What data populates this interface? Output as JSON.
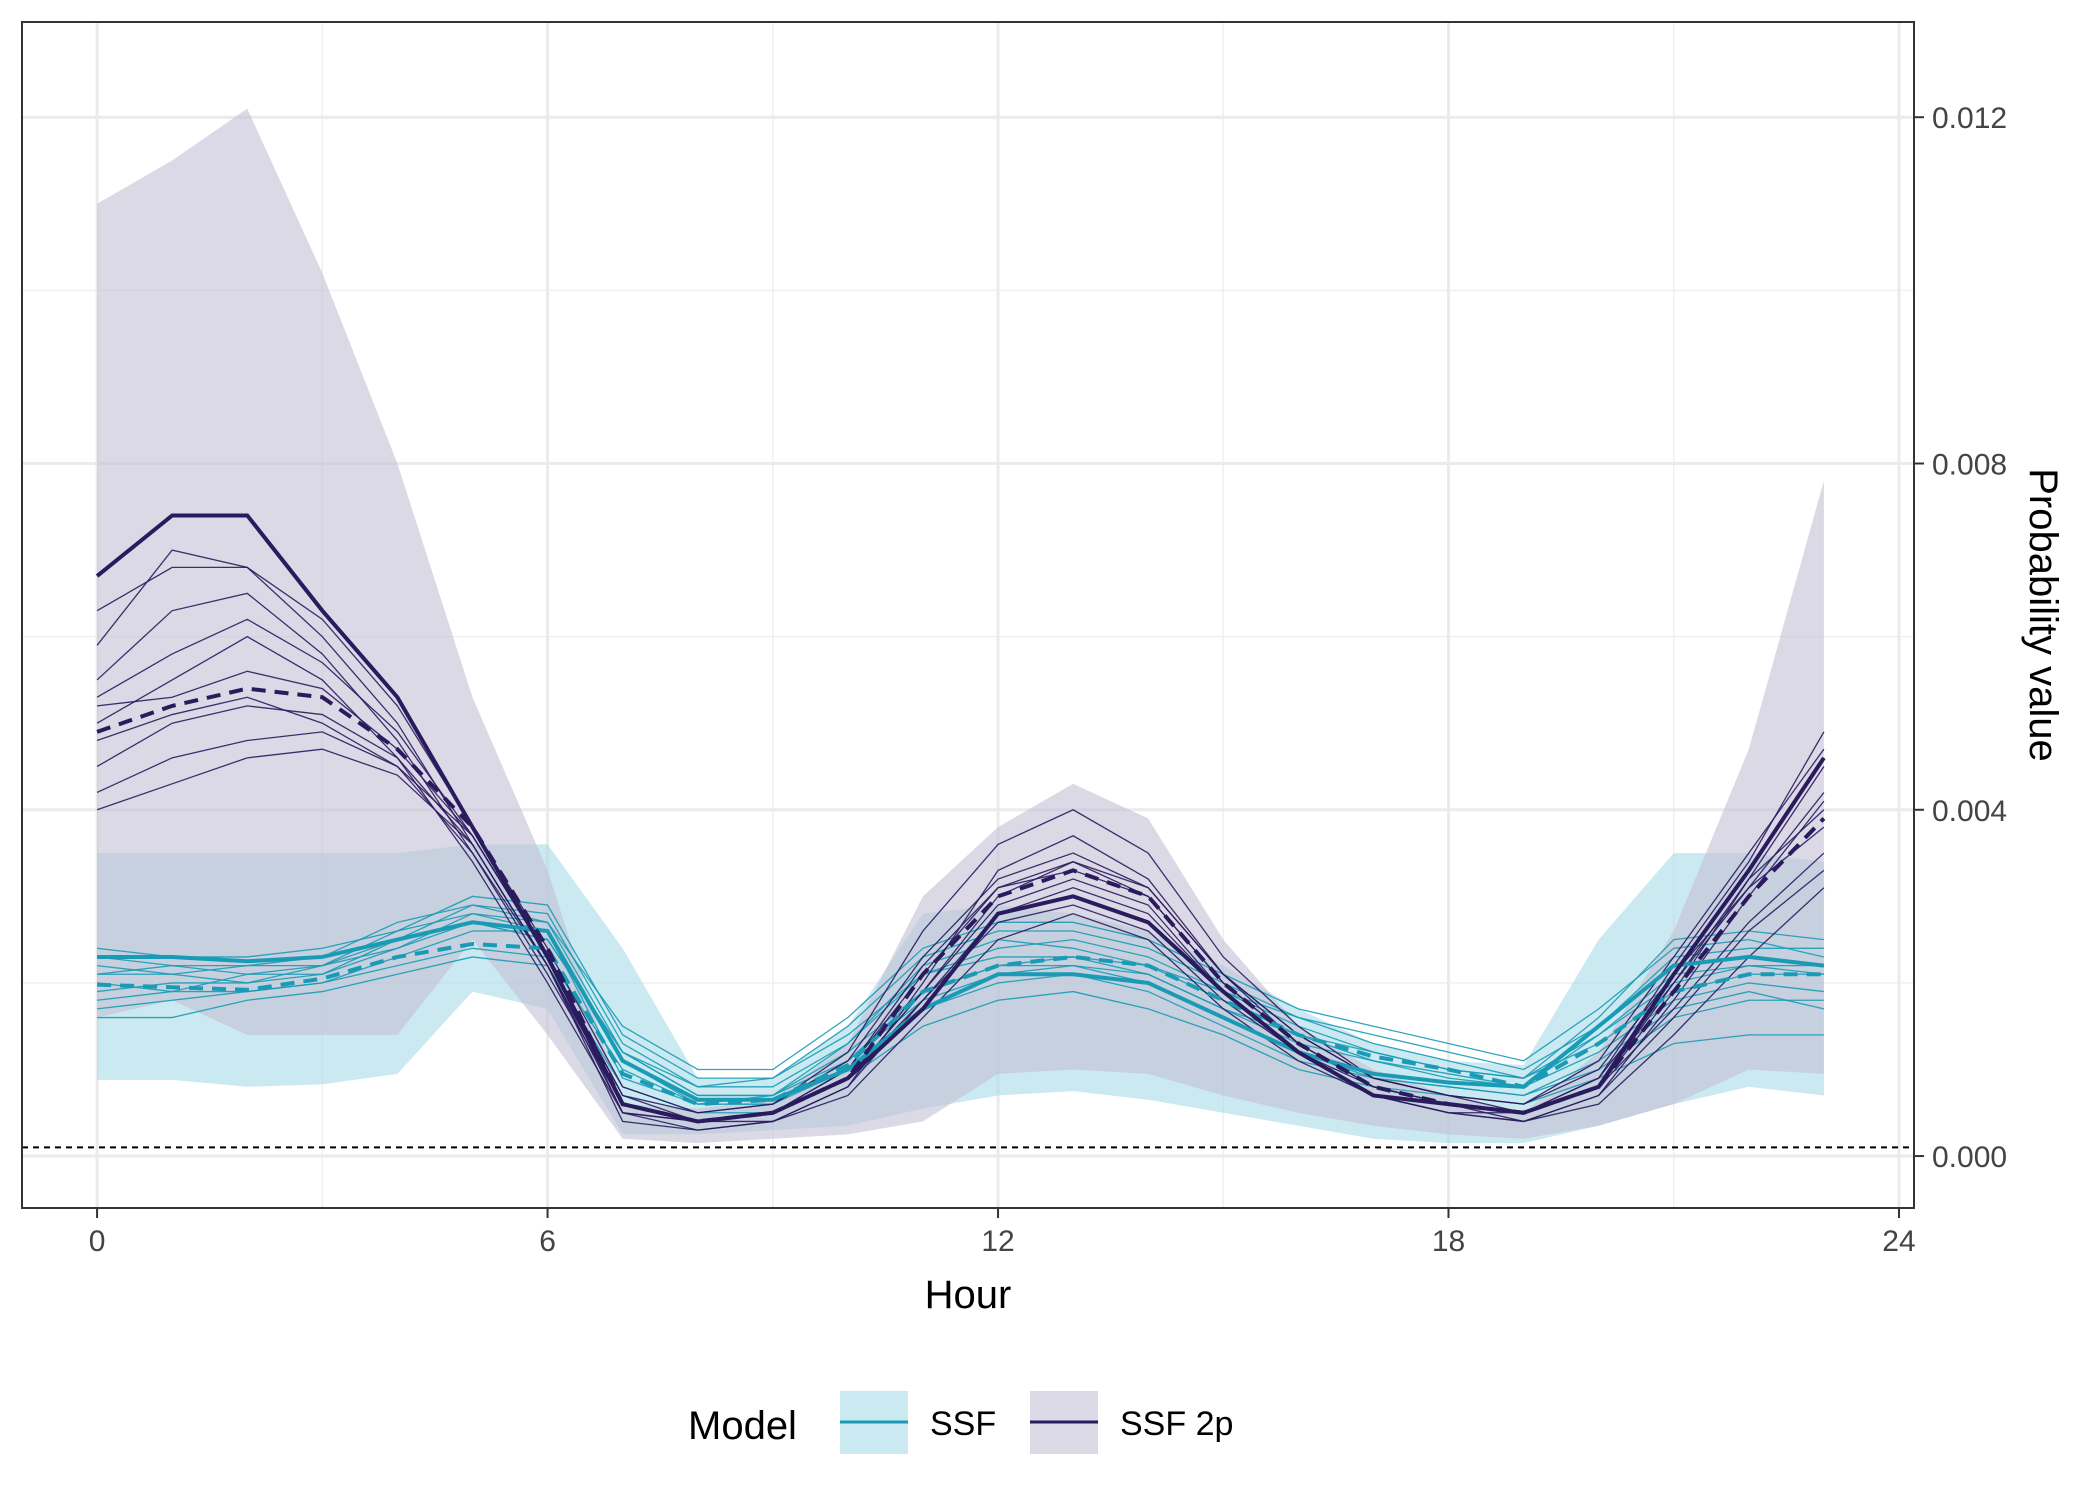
{
  "chart_data": {
    "type": "line",
    "xlabel": "Hour",
    "ylabel": "Probability value",
    "xlim": [
      -1,
      24.2
    ],
    "ylim": [
      -0.0006,
      0.0131
    ],
    "x_ticks": [
      0,
      6,
      12,
      18,
      24
    ],
    "x_tick_labels": [
      "0",
      "6",
      "12",
      "18",
      "24"
    ],
    "y_ticks": [
      0.0,
      0.004,
      0.008,
      0.012
    ],
    "y_tick_labels": [
      "0.000",
      "0.004",
      "0.008",
      "0.012"
    ],
    "y_axis_position": "right",
    "grid": true,
    "reference_line": 0.0001,
    "legend": {
      "title": "Model",
      "position": "bottom",
      "entries": [
        "SSF",
        "SSF 2p"
      ]
    },
    "x": [
      0,
      1,
      2,
      3,
      4,
      5,
      6,
      7,
      8,
      9,
      10,
      11,
      12,
      13,
      14,
      15,
      16,
      17,
      18,
      19,
      20,
      21,
      22,
      23
    ],
    "series": [
      {
        "name": "SSF",
        "color": "#1a9bb5",
        "band_fill": "#a6dbe6",
        "band_lower": [
          0.00088,
          0.00088,
          0.0008,
          0.00083,
          0.00095,
          0.0019,
          0.0017,
          0.00025,
          0.00025,
          0.0003,
          0.00035,
          0.00055,
          0.0007,
          0.00075,
          0.00065,
          0.0005,
          0.00035,
          0.0002,
          0.00015,
          0.00015,
          0.00035,
          0.0006,
          0.0008,
          0.0007
        ],
        "band_upper": [
          0.0035,
          0.0035,
          0.0035,
          0.0035,
          0.0035,
          0.0036,
          0.0036,
          0.0024,
          0.0009,
          0.0009,
          0.0015,
          0.0028,
          0.0029,
          0.0028,
          0.0026,
          0.0022,
          0.0017,
          0.0013,
          0.0011,
          0.00105,
          0.0025,
          0.0035,
          0.0035,
          0.0034
        ],
        "mean": [
          0.0023,
          0.0023,
          0.00225,
          0.0023,
          0.0025,
          0.0027,
          0.0026,
          0.0011,
          0.00065,
          0.00065,
          0.001,
          0.0017,
          0.0021,
          0.0021,
          0.002,
          0.0016,
          0.0012,
          0.00095,
          0.00085,
          0.0008,
          0.0015,
          0.0022,
          0.0023,
          0.0022
        ],
        "median": [
          0.00198,
          0.00195,
          0.00192,
          0.00205,
          0.0023,
          0.00245,
          0.0024,
          0.00095,
          0.0006,
          0.00065,
          0.00105,
          0.0019,
          0.0022,
          0.0023,
          0.0022,
          0.0018,
          0.0014,
          0.00115,
          0.001,
          0.0008,
          0.0013,
          0.0019,
          0.0021,
          0.0021
        ],
        "individuals": [
          [
            0.0021,
            0.0022,
            0.0021,
            0.0022,
            0.0024,
            0.0027,
            0.0025,
            0.0012,
            0.0007,
            0.0007,
            0.0012,
            0.0019,
            0.0022,
            0.0022,
            0.0021,
            0.0017,
            0.0013,
            0.0011,
            0.00095,
            0.0008,
            0.0014,
            0.0021,
            0.0022,
            0.0021
          ],
          [
            0.0017,
            0.0018,
            0.0019,
            0.002,
            0.0023,
            0.0026,
            0.0026,
            0.0009,
            0.0006,
            0.0007,
            0.0011,
            0.0018,
            0.0021,
            0.0022,
            0.002,
            0.0016,
            0.0012,
            0.0009,
            0.0008,
            0.0007,
            0.0011,
            0.0017,
            0.0019,
            0.0017
          ],
          [
            0.0019,
            0.002,
            0.002,
            0.0021,
            0.0025,
            0.0029,
            0.0028,
            0.0013,
            0.0008,
            0.0008,
            0.0013,
            0.0021,
            0.0024,
            0.0025,
            0.0023,
            0.0019,
            0.0015,
            0.0012,
            0.001,
            0.0009,
            0.0013,
            0.0019,
            0.0021,
            0.0021
          ],
          [
            0.0022,
            0.0021,
            0.002,
            0.0022,
            0.0026,
            0.003,
            0.0029,
            0.0014,
            0.0009,
            0.0009,
            0.0015,
            0.0023,
            0.0026,
            0.0026,
            0.0024,
            0.002,
            0.0016,
            0.0014,
            0.0012,
            0.001,
            0.0015,
            0.0023,
            0.0024,
            0.0024
          ],
          [
            0.0016,
            0.0016,
            0.0018,
            0.0019,
            0.0021,
            0.0023,
            0.0022,
            0.0008,
            0.0005,
            0.0005,
            0.0009,
            0.0015,
            0.0018,
            0.0019,
            0.0017,
            0.0014,
            0.001,
            0.0008,
            0.0007,
            0.0006,
            0.0009,
            0.0013,
            0.0014,
            0.0014
          ],
          [
            0.0023,
            0.0022,
            0.0022,
            0.0023,
            0.0027,
            0.0029,
            0.0027,
            0.0012,
            0.0007,
            0.0007,
            0.0013,
            0.0022,
            0.0025,
            0.0024,
            0.0022,
            0.0018,
            0.0014,
            0.0012,
            0.001,
            0.0009,
            0.0016,
            0.0025,
            0.0026,
            0.0025
          ],
          [
            0.002,
            0.0019,
            0.0021,
            0.0021,
            0.0024,
            0.0028,
            0.0026,
            0.0011,
            0.0006,
            0.0006,
            0.0011,
            0.0019,
            0.0022,
            0.0023,
            0.0021,
            0.0017,
            0.0014,
            0.0011,
            0.0009,
            0.0008,
            0.0012,
            0.0018,
            0.002,
            0.0019
          ],
          [
            0.0024,
            0.0023,
            0.0023,
            0.0024,
            0.0026,
            0.0028,
            0.0027,
            0.0015,
            0.001,
            0.001,
            0.0016,
            0.0024,
            0.0027,
            0.0027,
            0.0025,
            0.0021,
            0.0017,
            0.0015,
            0.0013,
            0.0011,
            0.0017,
            0.0024,
            0.0025,
            0.0023
          ],
          [
            0.0018,
            0.0019,
            0.0019,
            0.002,
            0.0022,
            0.0024,
            0.0023,
            0.001,
            0.0006,
            0.0006,
            0.001,
            0.0017,
            0.002,
            0.0021,
            0.0019,
            0.0015,
            0.0011,
            0.0009,
            0.0008,
            0.0007,
            0.001,
            0.0016,
            0.0018,
            0.0018
          ],
          [
            0.0021,
            0.0021,
            0.0022,
            0.0022,
            0.0025,
            0.0027,
            0.0025,
            0.0012,
            0.0008,
            0.0009,
            0.0014,
            0.0021,
            0.0023,
            0.0023,
            0.0022,
            0.0019,
            0.0016,
            0.0013,
            0.0011,
            0.0009,
            0.0014,
            0.002,
            0.0022,
            0.0022
          ]
        ]
      },
      {
        "name": "SSF 2p",
        "color": "#2a1a5e",
        "band_fill": "#c3bfd3",
        "band_lower": [
          0.0016,
          0.0018,
          0.0014,
          0.0014,
          0.0014,
          0.0025,
          0.0014,
          0.0002,
          0.00015,
          0.0002,
          0.00025,
          0.0004,
          0.00095,
          0.001,
          0.00095,
          0.0007,
          0.0005,
          0.00035,
          0.00025,
          0.0002,
          0.00035,
          0.0006,
          0.001,
          0.00095
        ],
        "band_upper": [
          0.011,
          0.0115,
          0.0121,
          0.0102,
          0.008,
          0.0053,
          0.0033,
          0.0006,
          0.00055,
          0.00065,
          0.0013,
          0.003,
          0.0038,
          0.0043,
          0.0039,
          0.0025,
          0.0015,
          0.001,
          0.0007,
          0.0005,
          0.0012,
          0.0026,
          0.0047,
          0.0078
        ],
        "mean": [
          0.0067,
          0.0074,
          0.0074,
          0.0063,
          0.0053,
          0.0038,
          0.0023,
          0.0006,
          0.0004,
          0.0005,
          0.0009,
          0.0017,
          0.0028,
          0.003,
          0.0027,
          0.0019,
          0.0012,
          0.0007,
          0.0006,
          0.0005,
          0.0008,
          0.0021,
          0.0033,
          0.0046
        ],
        "median": [
          0.0049,
          0.0052,
          0.0054,
          0.0053,
          0.0047,
          0.0038,
          0.0024,
          0.0006,
          0.0004,
          0.0005,
          0.0009,
          0.0021,
          0.003,
          0.0033,
          0.003,
          0.002,
          0.0013,
          0.0008,
          0.0006,
          0.0005,
          0.0008,
          0.0019,
          0.003,
          0.0039
        ],
        "individuals": [
          [
            0.0063,
            0.0068,
            0.0068,
            0.006,
            0.005,
            0.0036,
            0.0022,
            0.0005,
            0.0004,
            0.0005,
            0.0009,
            0.0018,
            0.0027,
            0.0029,
            0.0026,
            0.0018,
            0.0012,
            0.0007,
            0.0005,
            0.0005,
            0.0008,
            0.002,
            0.0032,
            0.0045
          ],
          [
            0.0055,
            0.0063,
            0.0065,
            0.0058,
            0.0048,
            0.0035,
            0.0021,
            0.0006,
            0.0004,
            0.0005,
            0.001,
            0.0021,
            0.0031,
            0.0034,
            0.003,
            0.002,
            0.0013,
            0.0008,
            0.0006,
            0.0005,
            0.0009,
            0.0022,
            0.0034,
            0.0049
          ],
          [
            0.005,
            0.0055,
            0.006,
            0.0055,
            0.0046,
            0.0034,
            0.002,
            0.0005,
            0.0003,
            0.0004,
            0.0008,
            0.002,
            0.0033,
            0.0037,
            0.0032,
            0.0021,
            0.0013,
            0.0008,
            0.0006,
            0.0004,
            0.0007,
            0.0018,
            0.003,
            0.0041
          ],
          [
            0.0052,
            0.0053,
            0.0056,
            0.0054,
            0.0047,
            0.0037,
            0.0023,
            0.0007,
            0.0005,
            0.0006,
            0.0011,
            0.0023,
            0.0032,
            0.0035,
            0.0031,
            0.0021,
            0.0014,
            0.0009,
            0.0007,
            0.0006,
            0.001,
            0.0021,
            0.0031,
            0.0038
          ],
          [
            0.0045,
            0.005,
            0.0052,
            0.0051,
            0.0046,
            0.0036,
            0.0022,
            0.0006,
            0.0004,
            0.0005,
            0.0009,
            0.0019,
            0.0029,
            0.0032,
            0.0029,
            0.0019,
            0.0012,
            0.0008,
            0.0006,
            0.0005,
            0.0008,
            0.0017,
            0.0027,
            0.0035
          ],
          [
            0.0042,
            0.0046,
            0.0048,
            0.0049,
            0.0045,
            0.0037,
            0.0023,
            0.0005,
            0.0004,
            0.0004,
            0.0008,
            0.0018,
            0.0028,
            0.0031,
            0.0028,
            0.0019,
            0.0012,
            0.0007,
            0.0005,
            0.0004,
            0.0007,
            0.0016,
            0.0026,
            0.0033
          ],
          [
            0.0059,
            0.007,
            0.0068,
            0.0062,
            0.0052,
            0.0038,
            0.0024,
            0.0008,
            0.0005,
            0.0006,
            0.0012,
            0.0026,
            0.0036,
            0.004,
            0.0035,
            0.0023,
            0.0015,
            0.0009,
            0.0007,
            0.0006,
            0.0011,
            0.0023,
            0.0035,
            0.0047
          ],
          [
            0.004,
            0.0043,
            0.0046,
            0.0047,
            0.0044,
            0.0036,
            0.0022,
            0.0004,
            0.0003,
            0.0004,
            0.0007,
            0.0016,
            0.0025,
            0.0028,
            0.0025,
            0.0017,
            0.0011,
            0.0007,
            0.0005,
            0.0004,
            0.0006,
            0.0014,
            0.0023,
            0.0031
          ],
          [
            0.0048,
            0.0051,
            0.0053,
            0.005,
            0.0045,
            0.0035,
            0.0022,
            0.0006,
            0.0004,
            0.0005,
            0.001,
            0.0022,
            0.0031,
            0.0033,
            0.003,
            0.002,
            0.0013,
            0.0008,
            0.0006,
            0.0005,
            0.0009,
            0.002,
            0.0031,
            0.0042
          ],
          [
            0.0053,
            0.0058,
            0.0062,
            0.0057,
            0.0049,
            0.0037,
            0.0023,
            0.0007,
            0.0004,
            0.0005,
            0.0009,
            0.0019,
            0.003,
            0.0034,
            0.0031,
            0.0021,
            0.0014,
            0.0009,
            0.0007,
            0.0005,
            0.0008,
            0.0019,
            0.0032,
            0.004
          ]
        ]
      }
    ]
  }
}
